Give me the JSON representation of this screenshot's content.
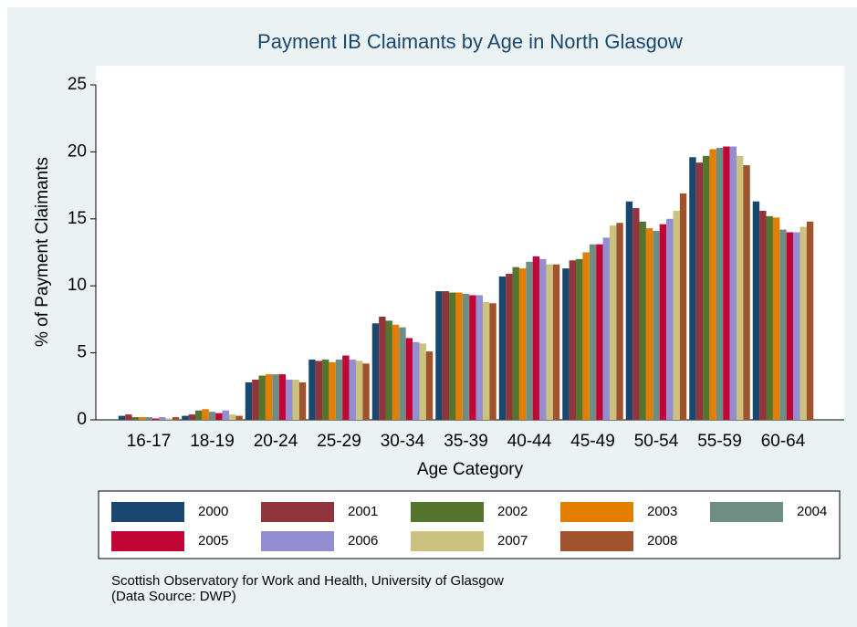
{
  "chart_data": {
    "type": "bar",
    "title": "Payment IB Claimants by Age in North Glasgow",
    "y_label": "% of Payment Claimants",
    "x_label": "Age Category",
    "note": [
      "Scottish Observatory for Work and Health, University of Glasgow",
      "(Data Source: DWP)"
    ],
    "categories": [
      "16-17",
      "18-19",
      "20-24",
      "25-29",
      "30-34",
      "35-39",
      "40-44",
      "45-49",
      "50-54",
      "55-59",
      "60-64"
    ],
    "ylim": [
      0,
      25
    ],
    "yticks": [
      0,
      5,
      10,
      15,
      20,
      25
    ],
    "series": [
      {
        "name": "2000",
        "color": "#1a476f",
        "values": [
          0.3,
          0.3,
          2.8,
          4.5,
          7.2,
          9.6,
          10.7,
          11.3,
          16.3,
          19.6,
          16.3
        ]
      },
      {
        "name": "2001",
        "color": "#90353b",
        "values": [
          0.4,
          0.4,
          3.0,
          4.4,
          7.7,
          9.6,
          10.9,
          11.9,
          15.8,
          19.2,
          15.6
        ]
      },
      {
        "name": "2002",
        "color": "#55752f",
        "values": [
          0.2,
          0.7,
          3.3,
          4.5,
          7.4,
          9.5,
          11.4,
          12.0,
          14.8,
          19.7,
          15.2
        ]
      },
      {
        "name": "2003",
        "color": "#e37e00",
        "values": [
          0.2,
          0.8,
          3.4,
          4.3,
          7.1,
          9.5,
          11.3,
          12.5,
          14.3,
          20.2,
          15.1
        ]
      },
      {
        "name": "2004",
        "color": "#6e8e84",
        "values": [
          0.2,
          0.6,
          3.4,
          4.5,
          6.9,
          9.4,
          11.8,
          13.1,
          14.1,
          20.3,
          14.2
        ]
      },
      {
        "name": "2005",
        "color": "#c10534",
        "values": [
          0.1,
          0.5,
          3.4,
          4.8,
          6.1,
          9.3,
          12.2,
          13.1,
          14.6,
          20.4,
          14.0
        ]
      },
      {
        "name": "2006",
        "color": "#938dd2",
        "values": [
          0.2,
          0.7,
          3.0,
          4.5,
          5.8,
          9.3,
          12.0,
          13.6,
          15.0,
          20.4,
          14.0
        ]
      },
      {
        "name": "2007",
        "color": "#cac27e",
        "values": [
          0.1,
          0.4,
          3.0,
          4.4,
          5.7,
          8.8,
          11.6,
          14.5,
          15.6,
          19.7,
          14.4
        ]
      },
      {
        "name": "2008",
        "color": "#a0522d",
        "values": [
          0.2,
          0.3,
          2.8,
          4.2,
          5.1,
          8.7,
          11.6,
          14.7,
          16.9,
          19.0,
          14.8
        ]
      }
    ],
    "legend_columns": 5
  }
}
